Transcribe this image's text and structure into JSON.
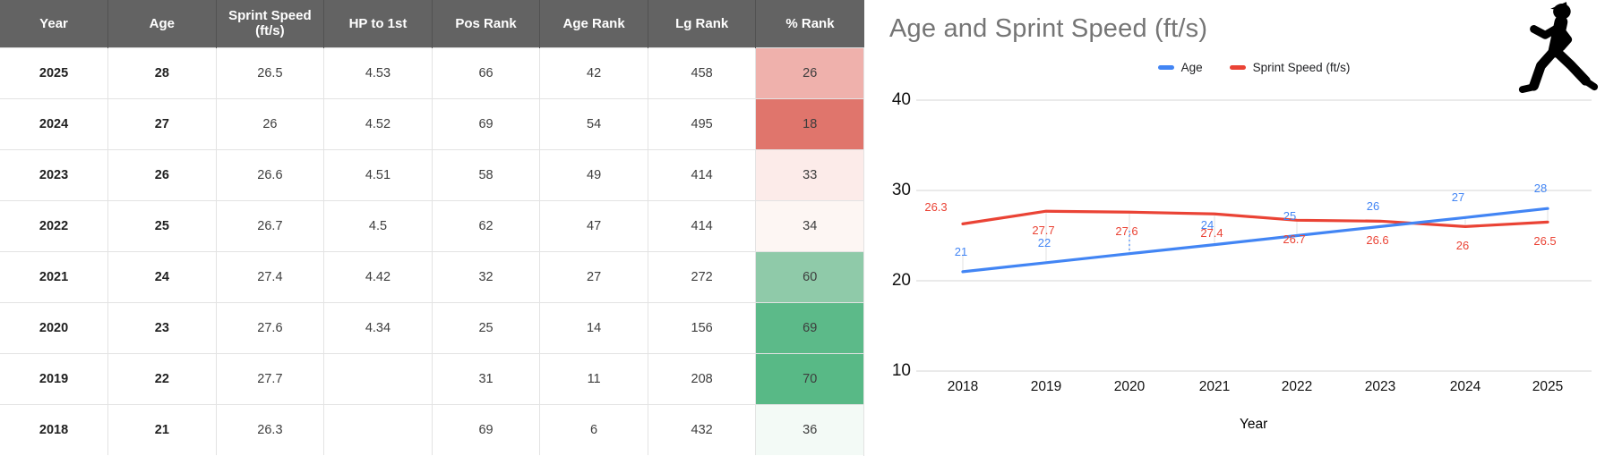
{
  "table": {
    "columns": [
      "Year",
      "Age",
      "Sprint Speed (ft/s)",
      "HP to 1st",
      "Pos Rank",
      "Age Rank",
      "Lg Rank",
      "% Rank"
    ],
    "rows": [
      {
        "cells": [
          "2025",
          "28",
          "26.5",
          "4.53",
          "66",
          "42",
          "458",
          "26"
        ],
        "pct_color": "#efb1ac"
      },
      {
        "cells": [
          "2024",
          "27",
          "26",
          "4.52",
          "69",
          "54",
          "495",
          "18"
        ],
        "pct_color": "#e0756c"
      },
      {
        "cells": [
          "2023",
          "26",
          "26.6",
          "4.51",
          "58",
          "49",
          "414",
          "33"
        ],
        "pct_color": "#fcebe9"
      },
      {
        "cells": [
          "2022",
          "25",
          "26.7",
          "4.5",
          "62",
          "47",
          "414",
          "34"
        ],
        "pct_color": "#fdf6f3"
      },
      {
        "cells": [
          "2021",
          "24",
          "27.4",
          "4.42",
          "32",
          "27",
          "272",
          "60"
        ],
        "pct_color": "#8fcaa9"
      },
      {
        "cells": [
          "2020",
          "23",
          "27.6",
          "4.34",
          "25",
          "14",
          "156",
          "69"
        ],
        "pct_color": "#5cba89"
      },
      {
        "cells": [
          "2019",
          "22",
          "27.7",
          "",
          "31",
          "11",
          "208",
          "70"
        ],
        "pct_color": "#58b986"
      },
      {
        "cells": [
          "2018",
          "21",
          "26.3",
          "",
          "69",
          "6",
          "432",
          "36"
        ],
        "pct_color": "#f3faf6"
      }
    ],
    "header_bg": "#636363"
  },
  "chart_data": {
    "type": "line",
    "title": "Age and Sprint Speed (ft/s)",
    "title_color": "#757575",
    "xlabel": "Year",
    "ylabel": "",
    "x": [
      2018,
      2019,
      2020,
      2021,
      2022,
      2023,
      2024,
      2025
    ],
    "ylim": [
      10,
      40
    ],
    "yticks": [
      40,
      30,
      20,
      10
    ],
    "grid": "horizontal-only",
    "legend_position": "top-center",
    "series": [
      {
        "name": "Age",
        "color": "#4285f4",
        "values": [
          21,
          22,
          23,
          24,
          25,
          26,
          27,
          28
        ],
        "point_labels": [
          "21",
          "22",
          "",
          "24",
          "25",
          "26",
          "27",
          "28"
        ]
      },
      {
        "name": "Sprint Speed (ft/s)",
        "color": "#ea4335",
        "values": [
          26.3,
          27.7,
          27.6,
          27.4,
          26.7,
          26.6,
          26,
          26.5
        ],
        "point_labels": [
          "26.3",
          "27.7",
          "27.6",
          "27.4",
          "26.7",
          "26.6",
          "26",
          "26.5"
        ]
      }
    ]
  },
  "icons": {
    "player": "baseball-player-silhouette"
  }
}
